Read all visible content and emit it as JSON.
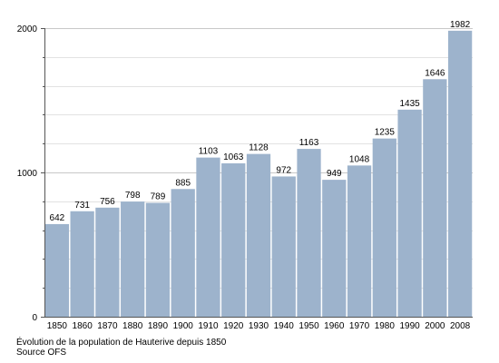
{
  "chart_data": {
    "type": "bar",
    "categories": [
      "1850",
      "1860",
      "1870",
      "1880",
      "1890",
      "1900",
      "1910",
      "1920",
      "1930",
      "1940",
      "1950",
      "1960",
      "1970",
      "1980",
      "1990",
      "2000",
      "2008"
    ],
    "values": [
      642,
      731,
      756,
      798,
      789,
      885,
      1103,
      1063,
      1128,
      972,
      1163,
      949,
      1048,
      1235,
      1435,
      1646,
      1982
    ],
    "ylim": [
      0,
      2000
    ],
    "yticks": [
      0,
      1000,
      2000
    ],
    "grid": true,
    "bar_color": "#9db3cc",
    "caption": "Évolution de la population de Hauterive depuis 1850",
    "source": "Source OFS"
  }
}
